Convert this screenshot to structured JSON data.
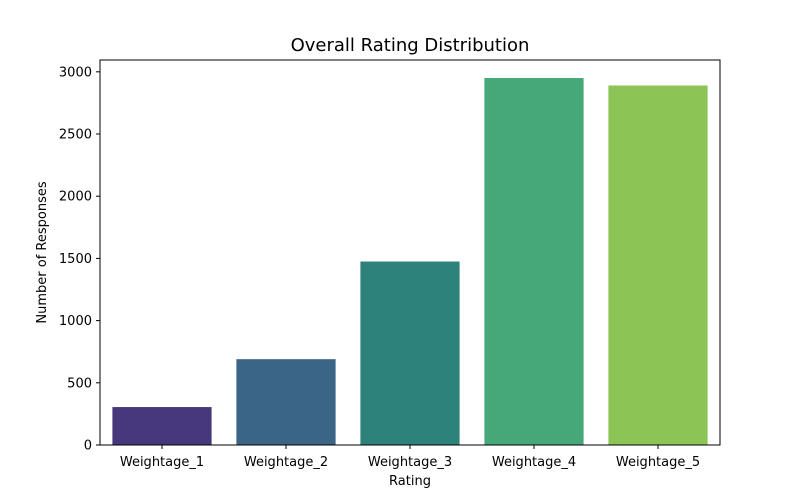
{
  "chart_data": {
    "type": "bar",
    "title": "Overall Rating Distribution",
    "xlabel": "Rating",
    "ylabel": "Number of Responses",
    "categories": [
      "Weightage_1",
      "Weightage_2",
      "Weightage_3",
      "Weightage_4",
      "Weightage_5"
    ],
    "values": [
      305,
      690,
      1475,
      2950,
      2890
    ],
    "ylim": [
      0,
      3095
    ],
    "yticks": [
      0,
      500,
      1000,
      1500,
      2000,
      2500,
      3000
    ],
    "ytick_labels": [
      "0",
      "500",
      "1000",
      "1500",
      "2000",
      "2500",
      "3000"
    ],
    "colors": [
      "#46387a",
      "#3b6587",
      "#2d837c",
      "#46a878",
      "#8cc556"
    ],
    "grid": false,
    "legend": "none"
  }
}
